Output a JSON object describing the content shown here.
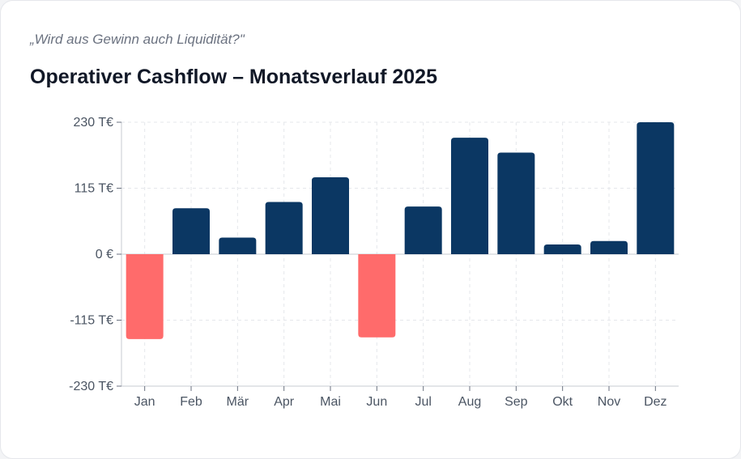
{
  "header": {
    "subtitle": "„Wird aus Gewinn auch Liquidität?\"",
    "title": "Operativer Cashflow – Monatsverlauf 2025"
  },
  "colors": {
    "positive": "#0b3763",
    "negative": "#ff6b6b",
    "grid": "#e5e7eb",
    "axis": "#c7cbd1"
  },
  "chart_data": {
    "type": "bar",
    "title": "Operativer Cashflow – Monatsverlauf 2025",
    "subtitle": "„Wird aus Gewinn auch Liquidität?\"",
    "xlabel": "",
    "ylabel": "",
    "categories": [
      "Jan",
      "Feb",
      "Mär",
      "Apr",
      "Mai",
      "Jun",
      "Jul",
      "Aug",
      "Sep",
      "Okt",
      "Nov",
      "Dez"
    ],
    "values": [
      -148,
      80,
      29,
      91,
      134,
      -145,
      83,
      203,
      177,
      17,
      23,
      230
    ],
    "ylim": [
      -230,
      230
    ],
    "yticks": [
      230,
      115,
      0,
      -115,
      -230
    ],
    "ytick_labels": [
      "230 T€",
      "115 T€",
      "0 €",
      "-115 T€",
      "-230 T€"
    ],
    "grid": true,
    "legend": "none"
  }
}
